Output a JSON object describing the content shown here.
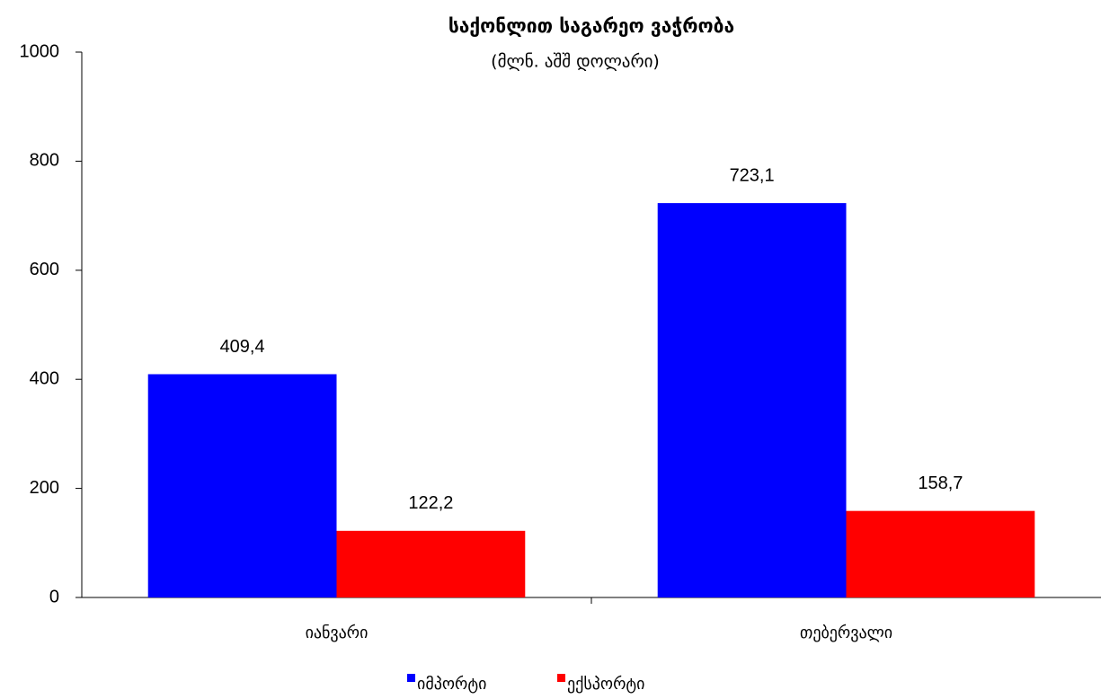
{
  "chart_data": {
    "type": "bar",
    "title": "საქონლით საგარეო ვაჭრობა",
    "subtitle": "(მლნ. აშშ დოლარი)",
    "categories": [
      "იანვარი",
      "თებერვალი"
    ],
    "series": [
      {
        "name": "იმპორტი",
        "color": "#0000ff",
        "values": [
          409.4,
          723.1
        ],
        "value_labels": [
          "409,4",
          "723,1"
        ]
      },
      {
        "name": "ექსპორტი",
        "color": "#ff0000",
        "values": [
          122.2,
          158.7
        ],
        "value_labels": [
          "122,2",
          "158,7"
        ]
      }
    ],
    "ylim": [
      0,
      1000
    ],
    "yticks": [
      0,
      200,
      400,
      600,
      800,
      1000
    ],
    "grid": false,
    "legend": "bottom"
  }
}
